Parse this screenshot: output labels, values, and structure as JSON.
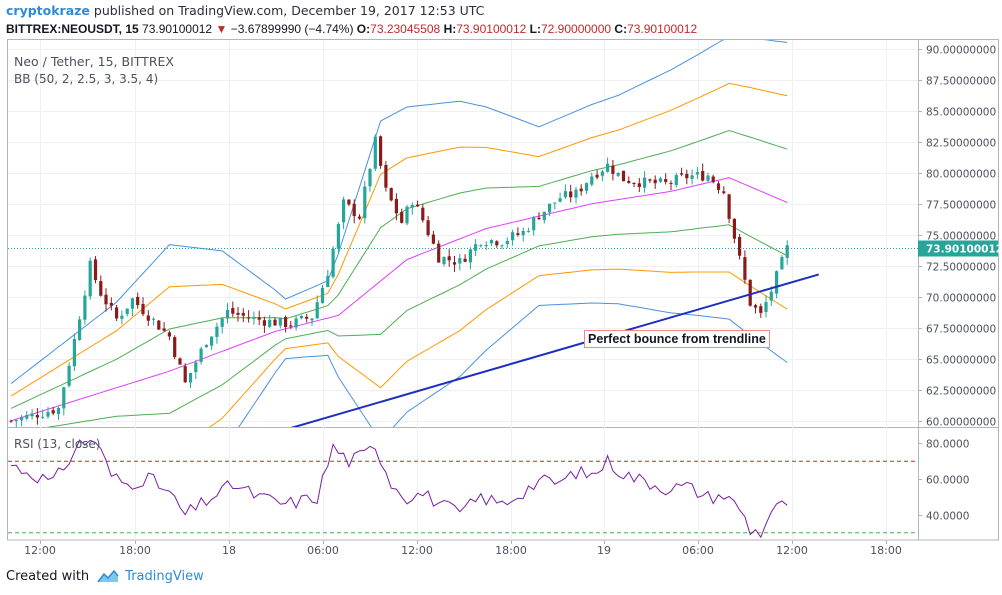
{
  "header": {
    "author": "cryptokraze",
    "publish_text": "published on TradingView.com, December 19, 2017 12:53 UTC",
    "symbol_prefix": "BITTREX:NEOUSDT, 15",
    "last_price": "73.90100012",
    "change": "−3.67899990 (−4.74%)",
    "open_label": "O:",
    "open": "73.23045508",
    "high_label": "H:",
    "high": "73.90100012",
    "low_label": "L:",
    "low": "72.90000000",
    "close_label": "C:",
    "close": "73.90100012"
  },
  "legend": {
    "symbol": "Neo / Tether, 15, BITTREX",
    "bb": "BB (50, 2, 2.5, 3, 3.5, 4)",
    "rsi": "RSI (13, close)"
  },
  "annotation": "Perfect bounce from trendline",
  "footer": {
    "created_with": "Created with",
    "brand": "TradingView"
  },
  "colors": {
    "up_candle": "#26a69a",
    "down_candle": "#8b1a1a",
    "bb_basis": "#e040fb",
    "bb_band_1": "#4caf50",
    "bb_band_2": "#ff9800",
    "bb_band_3": "#4a90e2",
    "trendline": "#1e2fc0",
    "rsi_line": "#7b1fa2",
    "rsi_upper": "#c62828",
    "rsi_lower": "#4caf50",
    "last_price_tag": "#26a69a"
  },
  "chart_data": [
    {
      "type": "candlestick",
      "title": "Neo / Tether, 15, BITTREX",
      "x_ticks": [
        "12:00",
        "18:00",
        "18",
        "06:00",
        "12:00",
        "18:00",
        "19",
        "06:00",
        "12:00",
        "18:00"
      ],
      "y_ticks": [
        "90.00000000",
        "87.50000000",
        "85.00000000",
        "82.50000000",
        "80.00000000",
        "77.50000000",
        "75.00000000",
        "72.50000000",
        "70.00000000",
        "67.50000000",
        "65.00000000",
        "62.50000000",
        "60.00000000"
      ],
      "ylim": [
        59.5,
        90.7
      ],
      "last_price": 73.90100012,
      "price_keypoints": [
        [
          0,
          60.0
        ],
        [
          9,
          61.0
        ],
        [
          12,
          66.5
        ],
        [
          15,
          72.5
        ],
        [
          17,
          70.3
        ],
        [
          20,
          68.2
        ],
        [
          23,
          69.8
        ],
        [
          26,
          68.5
        ],
        [
          30,
          66.8
        ],
        [
          33,
          63.0
        ],
        [
          37,
          66.5
        ],
        [
          41,
          68.8
        ],
        [
          45,
          68.3
        ],
        [
          49,
          68.0
        ],
        [
          53,
          67.8
        ],
        [
          57,
          68.4
        ],
        [
          60,
          72.0
        ],
        [
          63,
          77.5
        ],
        [
          66,
          76.5
        ],
        [
          69,
          82.5
        ],
        [
          71,
          78.5
        ],
        [
          74,
          76.0
        ],
        [
          76,
          77.8
        ],
        [
          78,
          76.2
        ],
        [
          81,
          73.2
        ],
        [
          85,
          72.8
        ],
        [
          89,
          74.6
        ],
        [
          93,
          74.5
        ],
        [
          97,
          75.2
        ],
        [
          100,
          76.6
        ],
        [
          104,
          78.0
        ],
        [
          107,
          78.3
        ],
        [
          110,
          79.8
        ],
        [
          113,
          80.6
        ],
        [
          116,
          79.5
        ],
        [
          120,
          79.2
        ],
        [
          124,
          79.1
        ],
        [
          128,
          79.7
        ],
        [
          132,
          79.8
        ],
        [
          135,
          78.5
        ],
        [
          138,
          73.0
        ],
        [
          140,
          69.5
        ],
        [
          142,
          68.5
        ],
        [
          144,
          70.5
        ],
        [
          147,
          73.9
        ]
      ],
      "indicator": {
        "name": "BB (50, 2, 2.5, 3, 3.5, 4)",
        "basis_keypoints": [
          [
            0,
            60.0
          ],
          [
            30,
            64.0
          ],
          [
            50,
            67.2
          ],
          [
            62,
            68.5
          ],
          [
            75,
            73.0
          ],
          [
            90,
            75.5
          ],
          [
            110,
            77.5
          ],
          [
            125,
            78.5
          ],
          [
            136,
            79.6
          ],
          [
            147,
            77.6
          ]
        ],
        "half_width_keypoints": [
          [
            0,
            1.0
          ],
          [
            20,
            2.3
          ],
          [
            30,
            3.4
          ],
          [
            40,
            2.7
          ],
          [
            52,
            0.8
          ],
          [
            60,
            1.0
          ],
          [
            70,
            4.3
          ],
          [
            85,
            3.7
          ],
          [
            100,
            2.4
          ],
          [
            115,
            2.8
          ],
          [
            130,
            3.5
          ],
          [
            140,
            4.0
          ],
          [
            147,
            4.3
          ]
        ]
      },
      "trendline": {
        "from": [
          48,
          58.8
        ],
        "to": [
          153,
          71.8
        ]
      }
    },
    {
      "type": "line",
      "title": "RSI (13, close)",
      "y_ticks": [
        "80.0000",
        "60.0000",
        "40.0000"
      ],
      "ylim": [
        26,
        88
      ],
      "levels": [
        70,
        30
      ],
      "rsi_keypoints": [
        [
          0,
          68
        ],
        [
          8,
          58
        ],
        [
          13,
          80
        ],
        [
          16,
          82
        ],
        [
          19,
          62
        ],
        [
          22,
          57
        ],
        [
          26,
          61
        ],
        [
          30,
          52
        ],
        [
          33,
          40
        ],
        [
          37,
          48
        ],
        [
          42,
          57
        ],
        [
          47,
          50
        ],
        [
          52,
          46
        ],
        [
          55,
          48
        ],
        [
          58,
          50
        ],
        [
          61,
          78
        ],
        [
          64,
          70
        ],
        [
          67,
          74
        ],
        [
          69,
          79
        ],
        [
          72,
          58
        ],
        [
          75,
          50
        ],
        [
          78,
          52
        ],
        [
          82,
          45
        ],
        [
          85,
          41
        ],
        [
          89,
          50
        ],
        [
          93,
          46
        ],
        [
          97,
          53
        ],
        [
          100,
          59
        ],
        [
          104,
          58
        ],
        [
          107,
          64
        ],
        [
          110,
          62
        ],
        [
          113,
          70
        ],
        [
          116,
          63
        ],
        [
          120,
          59
        ],
        [
          124,
          55
        ],
        [
          128,
          56
        ],
        [
          132,
          50
        ],
        [
          135,
          51
        ],
        [
          138,
          44
        ],
        [
          140,
          32
        ],
        [
          142,
          30
        ],
        [
          144,
          42
        ],
        [
          147,
          47
        ]
      ]
    }
  ]
}
